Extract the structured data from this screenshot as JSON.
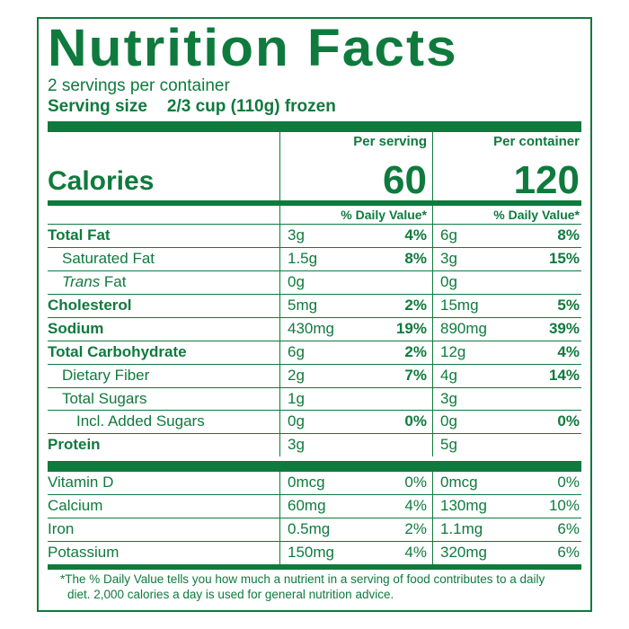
{
  "colors": {
    "primary": "#0f7a3d",
    "background": "#ffffff"
  },
  "title": "Nutrition Facts",
  "servings_per_container": "2 servings per container",
  "serving_size_label": "Serving size",
  "serving_size_value": "2/3 cup (110g) frozen",
  "column_headers": {
    "per_serving": "Per serving",
    "per_container": "Per container"
  },
  "calories": {
    "label": "Calories",
    "per_serving": "60",
    "per_container": "120"
  },
  "daily_value_header": "% Daily Value*",
  "nutrients": [
    {
      "name": "Total Fat",
      "bold": true,
      "indent": 0,
      "a_amt": "3g",
      "a_pct": "4%",
      "b_amt": "6g",
      "b_pct": "8%",
      "pct_bold": true
    },
    {
      "name": "Saturated Fat",
      "indent": 1,
      "a_amt": "1.5g",
      "a_pct": "8%",
      "b_amt": "3g",
      "b_pct": "15%",
      "pct_bold": true
    },
    {
      "name_html": "<span class='italic'>Trans</span> Fat",
      "indent": 1,
      "a_amt": "0g",
      "b_amt": "0g"
    },
    {
      "name": "Cholesterol",
      "bold": true,
      "indent": 0,
      "a_amt": "5mg",
      "a_pct": "2%",
      "b_amt": "15mg",
      "b_pct": "5%",
      "pct_bold": true
    },
    {
      "name": "Sodium",
      "bold": true,
      "indent": 0,
      "a_amt": "430mg",
      "a_pct": "19%",
      "b_amt": "890mg",
      "b_pct": "39%",
      "pct_bold": true
    },
    {
      "name": "Total Carbohydrate",
      "bold": true,
      "indent": 0,
      "a_amt": "6g",
      "a_pct": "2%",
      "b_amt": "12g",
      "b_pct": "4%",
      "pct_bold": true
    },
    {
      "name": "Dietary Fiber",
      "indent": 1,
      "a_amt": "2g",
      "a_pct": "7%",
      "b_amt": "4g",
      "b_pct": "14%",
      "pct_bold": true
    },
    {
      "name": "Total Sugars",
      "indent": 1,
      "a_amt": "1g",
      "b_amt": "3g"
    },
    {
      "name": "Incl. Added Sugars",
      "indent": 2,
      "a_amt": "0g",
      "a_pct": "0%",
      "b_amt": "0g",
      "b_pct": "0%",
      "pct_bold": true
    },
    {
      "name": "Protein",
      "bold": true,
      "indent": 0,
      "a_amt": "3g",
      "b_amt": "5g",
      "section_end": true
    }
  ],
  "vitamins": [
    {
      "name": "Vitamin D",
      "a_amt": "0mcg",
      "a_pct": "0%",
      "b_amt": "0mcg",
      "b_pct": "0%"
    },
    {
      "name": "Calcium",
      "a_amt": "60mg",
      "a_pct": "4%",
      "b_amt": "130mg",
      "b_pct": "10%"
    },
    {
      "name": "Iron",
      "a_amt": "0.5mg",
      "a_pct": "2%",
      "b_amt": "1.1mg",
      "b_pct": "6%"
    },
    {
      "name": "Potassium",
      "a_amt": "150mg",
      "a_pct": "4%",
      "b_amt": "320mg",
      "b_pct": "6%"
    }
  ],
  "footnote": "*The % Daily Value tells you how much a nutrient in a serving of food contributes to a daily diet. 2,000 calories a day is used for general nutrition advice."
}
